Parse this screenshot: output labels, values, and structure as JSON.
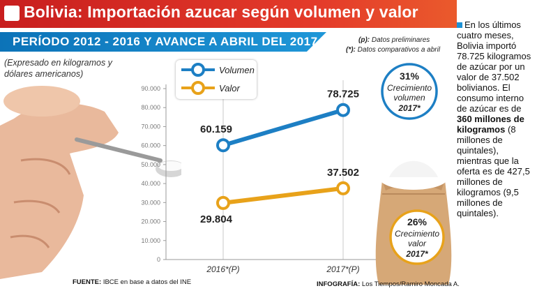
{
  "header": {
    "title": "Bolivia: Importación azucar según  volumen y valor",
    "period": "PERÍODO 2012 - 2016 Y AVANCE A ABRIL DEL 2017",
    "subtitle": "(Expresado en kilogramos y dólares americanos)"
  },
  "notes": {
    "p_key": "(p):",
    "p_text": "Datos preliminares",
    "star_key": "(*):",
    "star_text": "Datos comparativos a abril"
  },
  "badges": [
    {
      "percent": "31%",
      "line1": "Crecimiento",
      "line2": "volumen",
      "year": "2017*",
      "color": "#1d7fc4"
    },
    {
      "percent": "26%",
      "line1": "Crecimiento",
      "line2": "valor",
      "year": "2017*",
      "color": "#e8a21a"
    }
  ],
  "side_panel": {
    "p1": "En los últimos cuatro meses, Bolivia importó 78.725 kilogramos de azúcar por un valor de 37.502 bolivianos. El consumo interno de azúcar es de",
    "bold": "360 millones de kilogramos",
    "p2": "(8 millones de quintales), mientras que la oferta es de 427,5 millones de kilogramos (9,5 millones de quintales)."
  },
  "footer": {
    "source_label": "FUENTE:",
    "source_text": "IBCE en base a datos del INE",
    "infog_label": "INFOGRAFÍA:",
    "infog_text": "Los Tiempos/Ramiro Moncada A."
  },
  "chart_data": {
    "type": "line",
    "categories": [
      "2016*(P)",
      "2017*(P)"
    ],
    "series": [
      {
        "name": "Volumen",
        "values": [
          60159,
          78725
        ],
        "labels": [
          "60.159",
          "78.725"
        ],
        "color": "#1d7fc4"
      },
      {
        "name": "Valor",
        "values": [
          29804,
          37502
        ],
        "labels": [
          "29.804",
          "37.502"
        ],
        "color": "#e8a21a"
      }
    ],
    "ylim": [
      0,
      90000
    ],
    "yticks": [
      0,
      10000,
      20000,
      30000,
      40000,
      50000,
      60000,
      70000,
      80000,
      90000
    ],
    "ytick_labels": [
      "0",
      "10.000",
      "20.000",
      "30.000",
      "40.000",
      "50.000",
      "60.000",
      "70.000",
      "80.000",
      "90.000"
    ],
    "grid": true,
    "legend": "top-left"
  }
}
